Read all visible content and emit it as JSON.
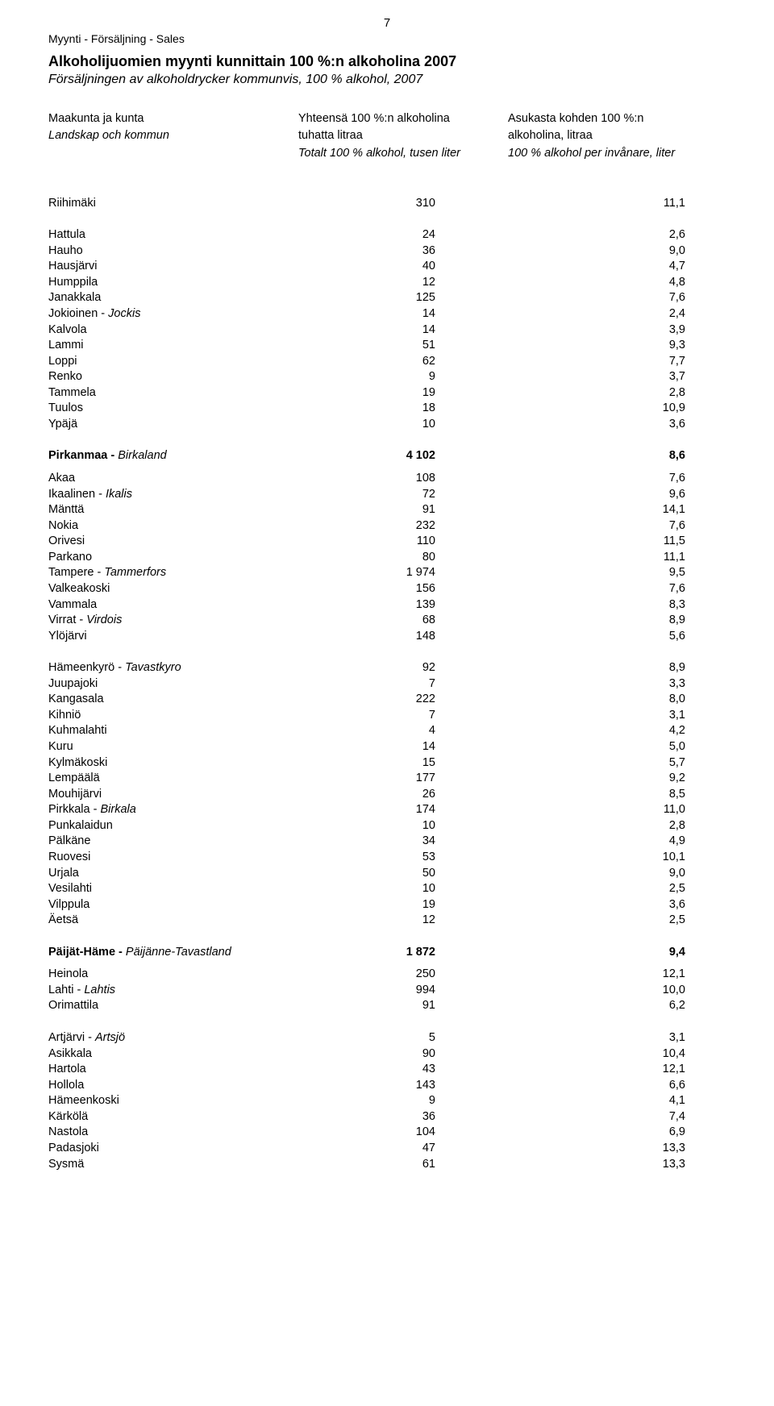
{
  "page_number": "7",
  "top_line": "Myynti - Försäljning -  Sales",
  "title_main": "Alkoholijuomien myynti kunnittain 100 %:n alkoholina 2007",
  "title_sub": "Försäljningen av alkoholdrycker kommunvis, 100 % alkohol, 2007",
  "header": {
    "a1": "Maakunta ja kunta",
    "a2": "Landskap och kommun",
    "b1": "Yhteensä 100 %:n alkoholina",
    "b2": "tuhatta litraa",
    "b3": "Totalt 100 % alkohol, tusen liter",
    "c1": "Asukasta kohden 100 %:n",
    "c2": "alkoholina, litraa",
    "c3": "100 % alkohol per invånare, liter"
  },
  "sections": [
    {
      "pre_gap": "lg",
      "rows": [
        {
          "label": "Riihimäki",
          "v1": "310",
          "v2": "11,1"
        }
      ]
    },
    {
      "pre_gap": "md",
      "rows": [
        {
          "label": "Hattula",
          "v1": "24",
          "v2": "2,6"
        },
        {
          "label": "Hauho",
          "v1": "36",
          "v2": "9,0"
        },
        {
          "label": "Hausjärvi",
          "v1": "40",
          "v2": "4,7"
        },
        {
          "label": "Humppila",
          "v1": "12",
          "v2": "4,8"
        },
        {
          "label": "Janakkala",
          "v1": "125",
          "v2": "7,6"
        },
        {
          "label": "Jokioinen",
          "italic_suffix": "Jockis",
          "v1": "14",
          "v2": "2,4"
        },
        {
          "label": "Kalvola",
          "v1": "14",
          "v2": "3,9"
        },
        {
          "label": "Lammi",
          "v1": "51",
          "v2": "9,3"
        },
        {
          "label": "Loppi",
          "v1": "62",
          "v2": "7,7"
        },
        {
          "label": "Renko",
          "v1": "9",
          "v2": "3,7"
        },
        {
          "label": "Tammela",
          "v1": "19",
          "v2": "2,8"
        },
        {
          "label": "Tuulos",
          "v1": "18",
          "v2": "10,9"
        },
        {
          "label": "Ypäjä",
          "v1": "10",
          "v2": "3,6"
        }
      ]
    },
    {
      "pre_gap": "md",
      "header_row": {
        "bold_label": "Pirkanmaa",
        "italic_suffix": "Birkaland",
        "v1": "4 102",
        "v2": "8,6"
      },
      "post_header_gap": "sm",
      "rows": [
        {
          "label": "Akaa",
          "v1": "108",
          "v2": "7,6"
        },
        {
          "label": "Ikaalinen",
          "italic_suffix": "Ikalis",
          "v1": "72",
          "v2": "9,6"
        },
        {
          "label": "Mänttä",
          "v1": "91",
          "v2": "14,1"
        },
        {
          "label": "Nokia",
          "v1": "232",
          "v2": "7,6"
        },
        {
          "label": "Orivesi",
          "v1": "110",
          "v2": "11,5"
        },
        {
          "label": "Parkano",
          "v1": "80",
          "v2": "11,1"
        },
        {
          "label": "Tampere",
          "italic_suffix": "Tammerfors",
          "v1": "1 974",
          "v2": "9,5"
        },
        {
          "label": "Valkeakoski",
          "v1": "156",
          "v2": "7,6"
        },
        {
          "label": "Vammala",
          "v1": "139",
          "v2": "8,3"
        },
        {
          "label": "Virrat",
          "italic_suffix": "Virdois",
          "v1": "68",
          "v2": "8,9"
        },
        {
          "label": "Ylöjärvi",
          "v1": "148",
          "v2": "5,6"
        }
      ]
    },
    {
      "pre_gap": "md",
      "rows": [
        {
          "label": "Hämeenkyrö",
          "italic_suffix": "Tavastkyro",
          "v1": "92",
          "v2": "8,9"
        },
        {
          "label": "Juupajoki",
          "v1": "7",
          "v2": "3,3"
        },
        {
          "label": "Kangasala",
          "v1": "222",
          "v2": "8,0"
        },
        {
          "label": "Kihniö",
          "v1": "7",
          "v2": "3,1"
        },
        {
          "label": "Kuhmalahti",
          "v1": "4",
          "v2": "4,2"
        },
        {
          "label": "Kuru",
          "v1": "14",
          "v2": "5,0"
        },
        {
          "label": "Kylmäkoski",
          "v1": "15",
          "v2": "5,7"
        },
        {
          "label": "Lempäälä",
          "v1": "177",
          "v2": "9,2"
        },
        {
          "label": "Mouhijärvi",
          "v1": "26",
          "v2": "8,5"
        },
        {
          "label": "Pirkkala",
          "italic_suffix": "Birkala",
          "v1": "174",
          "v2": "11,0"
        },
        {
          "label": "Punkalaidun",
          "v1": "10",
          "v2": "2,8"
        },
        {
          "label": "Pälkäne",
          "v1": "34",
          "v2": "4,9"
        },
        {
          "label": "Ruovesi",
          "v1": "53",
          "v2": "10,1"
        },
        {
          "label": "Urjala",
          "v1": "50",
          "v2": "9,0"
        },
        {
          "label": "Vesilahti",
          "v1": "10",
          "v2": "2,5"
        },
        {
          "label": "Vilppula",
          "v1": "19",
          "v2": "3,6"
        },
        {
          "label": "Äetsä",
          "v1": "12",
          "v2": "2,5"
        }
      ]
    },
    {
      "pre_gap": "md",
      "header_row": {
        "bold_label": "Päijät-Häme",
        "italic_suffix": "Päijänne-Tavastland",
        "v1": "1 872",
        "v2": "9,4"
      },
      "post_header_gap": "sm",
      "rows": [
        {
          "label": "Heinola",
          "v1": "250",
          "v2": "12,1"
        },
        {
          "label": "Lahti",
          "italic_suffix": "Lahtis",
          "v1": "994",
          "v2": "10,0"
        },
        {
          "label": "Orimattila",
          "v1": "91",
          "v2": "6,2"
        }
      ]
    },
    {
      "pre_gap": "md",
      "rows": [
        {
          "label": "Artjärvi",
          "italic_suffix": "Artsjö",
          "v1": "5",
          "v2": "3,1"
        },
        {
          "label": "Asikkala",
          "v1": "90",
          "v2": "10,4"
        },
        {
          "label": "Hartola",
          "v1": "43",
          "v2": "12,1"
        },
        {
          "label": "Hollola",
          "v1": "143",
          "v2": "6,6"
        },
        {
          "label": "Hämeenkoski",
          "v1": "9",
          "v2": "4,1"
        },
        {
          "label": "Kärkölä",
          "v1": "36",
          "v2": "7,4"
        },
        {
          "label": "Nastola",
          "v1": "104",
          "v2": "6,9"
        },
        {
          "label": "Padasjoki",
          "v1": "47",
          "v2": "13,3"
        },
        {
          "label": "Sysmä",
          "v1": "61",
          "v2": "13,3"
        }
      ]
    }
  ]
}
